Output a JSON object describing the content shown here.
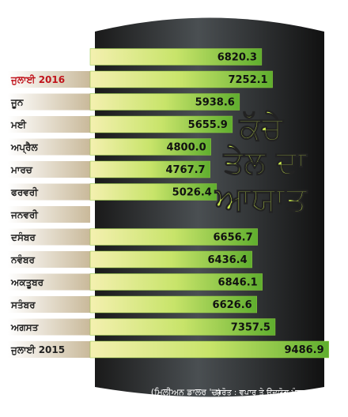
{
  "chart_data": {
    "type": "bar",
    "orientation": "horizontal",
    "title": [
      "ਕੱਚੇ",
      "ਤੇਲ ਦਾ",
      "ਆਯਾਤ"
    ],
    "unit_note": "(ਮਿਲੀਅਨ ਡਾਲਰ 'ਚ)",
    "source": "ਸਰੋਤ : ਵਪਾਰ ਤੇ ਉਦਯੋਗ ਮੰਤਰਾਲਾ",
    "categories": [
      null,
      "ਜੁਲਾਈ 2016",
      "ਜੂਨ",
      "ਮਈ",
      "ਅਪ੍ਰੈਲ",
      "ਮਾਰਚ",
      "ਫਰਵਰੀ",
      "ਜਨਵਰੀ",
      "ਦਸੰਬਰ",
      "ਨਵੰਬਰ",
      "ਅਕਤੂਬਰ",
      "ਸਤੰਬਰ",
      "ਅਗਸਤ",
      "ਜੁਲਾਈ 2015"
    ],
    "values": [
      6820.3,
      7252.1,
      5938.6,
      5655.9,
      4800.0,
      4767.7,
      5026.4,
      null,
      6656.7,
      6436.4,
      6846.1,
      6626.6,
      7357.5,
      9486.9
    ],
    "value_labels": [
      "6820.3",
      "7252.1",
      "5938.6",
      "5655.9",
      "4800.0",
      "4767.7",
      "5026.4",
      null,
      "6656.7",
      "6436.4",
      "6846.1",
      "6626.6",
      "7357.5",
      "9486.9"
    ],
    "color": "#8cc63f",
    "xlim": [
      0,
      10000
    ]
  }
}
